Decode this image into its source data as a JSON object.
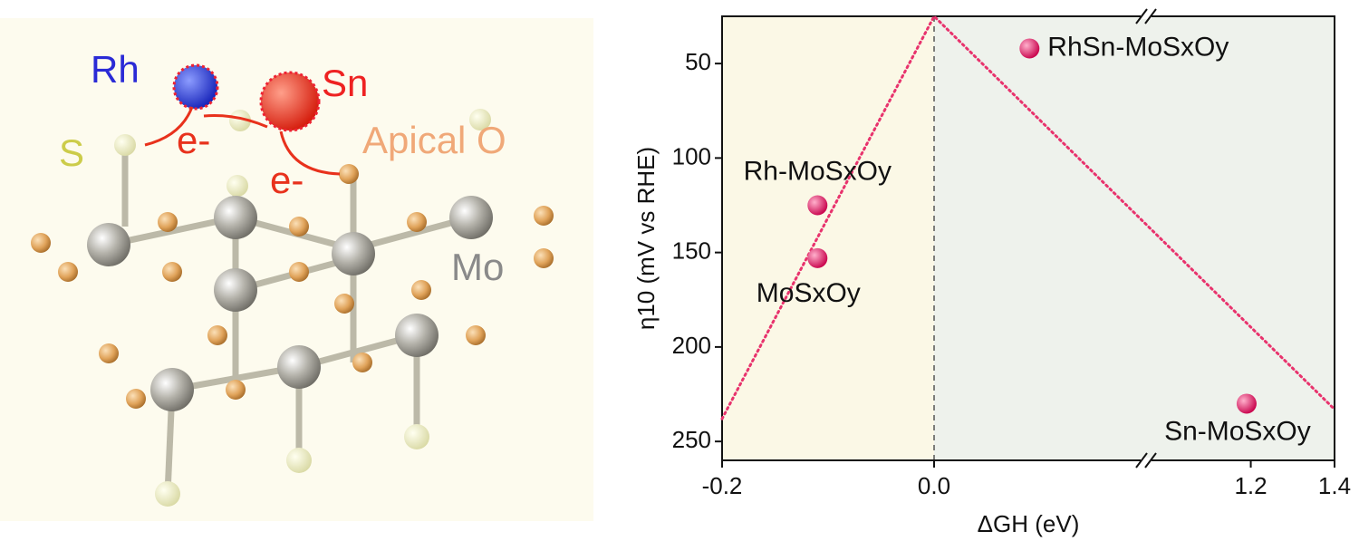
{
  "structure": {
    "labels": [
      "Rh",
      "Sn",
      "S",
      "Apical O",
      "Mo",
      "e-",
      "e-"
    ]
  },
  "chart_data": {
    "type": "scatter",
    "x_label": "ΔGH (eV)",
    "y_label": "η10 (mV vs RHE)",
    "xlim": [
      -0.2,
      1.4
    ],
    "x_break": [
      0.2,
      0.95
    ],
    "ylim": [
      25,
      260
    ],
    "y_inverted": true,
    "xticks": [
      -0.2,
      {
        "value": 0,
        "label": "0.0"
      },
      1.2,
      1.4
    ],
    "yticks": [
      50,
      100,
      150,
      200,
      250
    ],
    "color": "#e0115f",
    "points": {
      "labels": [
        "RhSn-MoSxOy",
        "Rh-MoSxOy",
        "MoSxOy",
        "Sn-MoSxOy"
      ],
      "x": [
        0.09,
        -0.11,
        -0.11,
        1.19
      ],
      "values": [
        42,
        125,
        153,
        230
      ]
    },
    "volcano": {
      "x": [
        -0.2,
        0,
        1.4
      ],
      "values": [
        238,
        25,
        233
      ],
      "color": "#e8336d"
    },
    "region_colors": [
      "#fbf8e6",
      "#eef2ec"
    ]
  }
}
